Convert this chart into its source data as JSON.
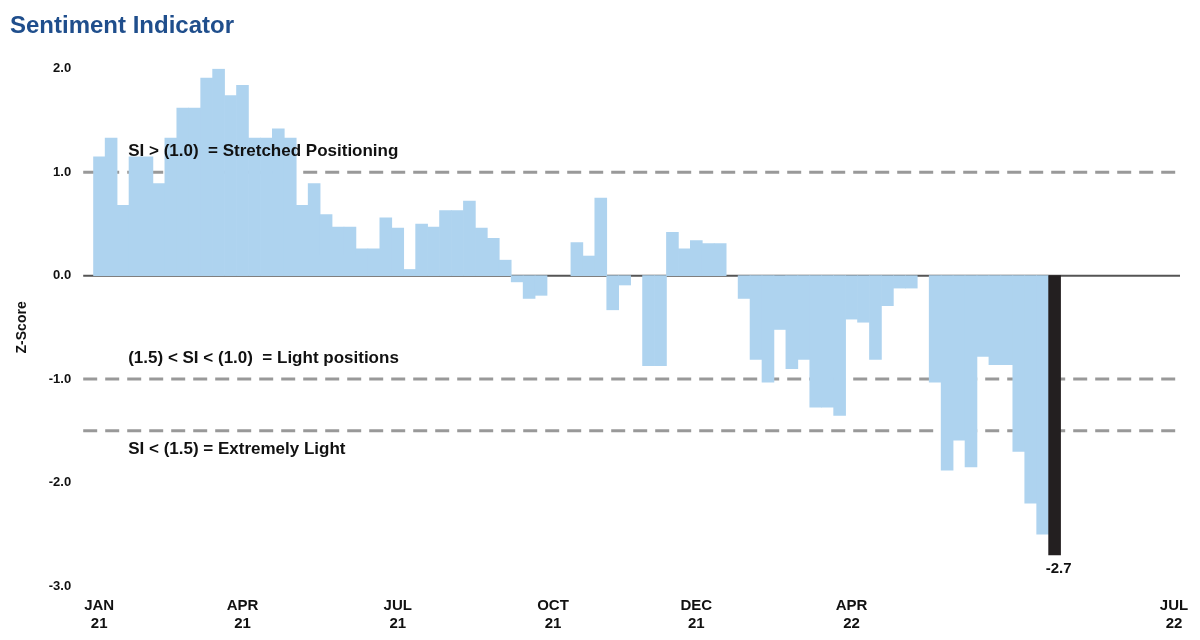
{
  "chart_data": {
    "type": "bar",
    "title": "Sentiment Indicator",
    "ylabel": "Z-Score",
    "categories": [
      "JAN 21",
      null,
      null,
      null,
      null,
      null,
      null,
      null,
      null,
      null,
      null,
      null,
      "APR 21",
      null,
      null,
      null,
      null,
      null,
      null,
      null,
      null,
      null,
      null,
      null,
      null,
      "JUL 21",
      null,
      null,
      null,
      null,
      null,
      null,
      null,
      null,
      null,
      null,
      null,
      null,
      "OCT 21",
      null,
      null,
      null,
      null,
      null,
      null,
      null,
      null,
      null,
      null,
      null,
      "DEC 21",
      null,
      null,
      null,
      null,
      null,
      null,
      null,
      null,
      null,
      null,
      null,
      null,
      "APR 22",
      null,
      null,
      null,
      null,
      null,
      null,
      null,
      null,
      null,
      null,
      null,
      null,
      null,
      null,
      null,
      null,
      null,
      null,
      null,
      null,
      null,
      null,
      null,
      null,
      null,
      null,
      "JUL 22"
    ],
    "values": [
      1.15,
      1.33,
      0.68,
      1.15,
      1.15,
      0.89,
      1.33,
      1.62,
      1.62,
      1.91,
      2,
      1.74,
      1.84,
      1.33,
      1.33,
      1.42,
      1.33,
      0.68,
      0.89,
      0.59,
      0.47,
      0.47,
      0.26,
      0.26,
      0.56,
      0.46,
      0.06,
      0.5,
      0.47,
      0.63,
      0.63,
      0.72,
      0.46,
      0.36,
      0.15,
      -0.06,
      -0.22,
      -0.19,
      null,
      null,
      0.32,
      0.19,
      0.75,
      -0.33,
      -0.09,
      null,
      -0.87,
      -0.87,
      0.42,
      0.26,
      0.34,
      0.31,
      0.31,
      null,
      -0.22,
      -0.81,
      -1.03,
      -0.52,
      -0.9,
      -0.81,
      -1.27,
      -1.27,
      -1.35,
      -0.42,
      -0.45,
      -0.81,
      -0.29,
      -0.12,
      -0.12,
      null,
      -1.03,
      -1.88,
      -1.59,
      -1.85,
      -0.78,
      -0.86,
      -0.86,
      -1.7,
      -2.2,
      -2.5,
      -2.7,
      null,
      null,
      null,
      null,
      null,
      null,
      null,
      null,
      null,
      null
    ],
    "colors": [
      "#aed3ef",
      "#aed3ef",
      "#aed3ef",
      "#aed3ef",
      "#aed3ef",
      "#aed3ef",
      "#aed3ef",
      "#aed3ef",
      "#aed3ef",
      "#aed3ef",
      "#aed3ef",
      "#aed3ef",
      "#aed3ef",
      "#aed3ef",
      "#aed3ef",
      "#aed3ef",
      "#aed3ef",
      "#aed3ef",
      "#aed3ef",
      "#aed3ef",
      "#aed3ef",
      "#aed3ef",
      "#aed3ef",
      "#aed3ef",
      "#aed3ef",
      "#aed3ef",
      "#aed3ef",
      "#aed3ef",
      "#aed3ef",
      "#aed3ef",
      "#aed3ef",
      "#aed3ef",
      "#aed3ef",
      "#aed3ef",
      "#aed3ef",
      "#aed3ef",
      "#aed3ef",
      "#aed3ef",
      "#aed3ef",
      "#aed3ef",
      "#aed3ef",
      "#aed3ef",
      "#aed3ef",
      "#aed3ef",
      "#aed3ef",
      "#aed3ef",
      "#aed3ef",
      "#aed3ef",
      "#aed3ef",
      "#aed3ef",
      "#aed3ef",
      "#aed3ef",
      "#aed3ef",
      "#aed3ef",
      "#aed3ef",
      "#aed3ef",
      "#aed3ef",
      "#aed3ef",
      "#aed3ef",
      "#aed3ef",
      "#aed3ef",
      "#aed3ef",
      "#aed3ef",
      "#aed3ef",
      "#aed3ef",
      "#aed3ef",
      "#aed3ef",
      "#aed3ef",
      "#aed3ef",
      "#aed3ef",
      "#aed3ef",
      "#aed3ef",
      "#aed3ef",
      "#aed3ef",
      "#aed3ef",
      "#aed3ef",
      "#aed3ef",
      "#aed3ef",
      "#aed3ef",
      "#aed3ef",
      "#231f20",
      "#aed3ef",
      "#aed3ef",
      "#aed3ef",
      "#aed3ef",
      "#aed3ef",
      "#aed3ef",
      "#aed3ef",
      "#aed3ef",
      "#aed3ef",
      "#aed3ef"
    ],
    "value_labels": [
      null,
      null,
      null,
      null,
      null,
      null,
      null,
      null,
      null,
      null,
      null,
      null,
      null,
      null,
      null,
      null,
      null,
      null,
      null,
      null,
      null,
      null,
      null,
      null,
      null,
      null,
      null,
      null,
      null,
      null,
      null,
      null,
      null,
      null,
      null,
      null,
      null,
      null,
      null,
      null,
      null,
      null,
      null,
      null,
      null,
      null,
      null,
      null,
      null,
      null,
      null,
      null,
      null,
      null,
      null,
      null,
      null,
      null,
      null,
      null,
      null,
      null,
      null,
      null,
      null,
      null,
      null,
      null,
      null,
      null,
      null,
      null,
      null,
      null,
      null,
      null,
      null,
      null,
      null,
      null,
      "-2.7",
      null,
      null,
      null,
      null,
      null,
      null,
      null,
      null,
      null,
      null
    ],
    "ylim": [
      -3,
      2
    ],
    "yticks": [
      {
        "value": -3,
        "label": "-3.0"
      },
      {
        "value": -2,
        "label": "-2.0"
      },
      {
        "value": -1,
        "label": "-1.0"
      },
      {
        "value": 0,
        "label": "0.0"
      },
      {
        "value": 1,
        "label": "1.0"
      },
      {
        "value": 2,
        "label": "2.0"
      }
    ],
    "ref_lines": [
      {
        "axis": "y",
        "value": 0,
        "color": "#555555",
        "line_style": "solid"
      },
      {
        "axis": "y",
        "value": 1,
        "label": "SI > (1.0)  = Stretched Positioning",
        "color": "#999999",
        "line_style": "dashed"
      },
      {
        "axis": "y",
        "value": -1,
        "label": "(1.5) < SI < (1.0)  = Light positions",
        "color": "#999999",
        "line_style": "dashed"
      },
      {
        "axis": "y",
        "value": -1.5,
        "label": "SI < (1.5) = Extremely Light",
        "color": "#999999",
        "line_style": "dashed"
      }
    ]
  }
}
